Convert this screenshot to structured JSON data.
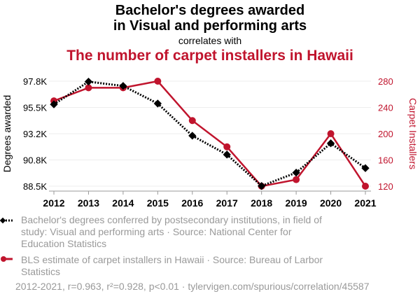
{
  "title_line1": "Bachelor's degrees awarded",
  "title_line2": "in Visual and performing arts",
  "subtitle": "correlates with",
  "title2": "The number of carpet installers in Hawaii",
  "colors": {
    "series1": "#000000",
    "series2": "#c0142d",
    "legend_text": "#999999"
  },
  "legend": [
    "Bachelor's degrees conferred by postsecondary institutions, in field of study: Visual and performing arts · Source: National Center for Education Statistics",
    "BLS estimate of carpet installers in Hawaii · Source: Bureau of Larbor Statistics"
  ],
  "footer": "2012-2021, r=0.963, r²=0.928, p<0.01 · tylervigen.com/spurious/correlation/45587",
  "chart_data": {
    "type": "line",
    "x": [
      "2012",
      "2013",
      "2014",
      "2015",
      "2016",
      "2017",
      "2018",
      "2019",
      "2020",
      "2021"
    ],
    "ylabel": "Degrees awarded",
    "y2label": "Carpet Installers",
    "ylim": [
      88.5,
      97.8
    ],
    "y2lim": [
      120,
      280
    ],
    "yticks": [
      "88.5K",
      "90.8K",
      "93.2K",
      "95.5K",
      "97.8K"
    ],
    "y2ticks": [
      "120",
      "160",
      "200",
      "240",
      "280"
    ],
    "grid": true,
    "series": [
      {
        "name": "Bachelor's degrees (Visual and performing arts)",
        "axis": "left",
        "style": "dotted-diamond",
        "values": [
          95.75,
          97.76,
          97.38,
          95.82,
          92.97,
          91.3,
          88.52,
          89.7,
          92.3,
          90.1
        ]
      },
      {
        "name": "Carpet installers in Hawaii",
        "axis": "right",
        "style": "solid-circle",
        "values": [
          250,
          270,
          270,
          280,
          220,
          180,
          120,
          130,
          200,
          120
        ]
      }
    ]
  }
}
